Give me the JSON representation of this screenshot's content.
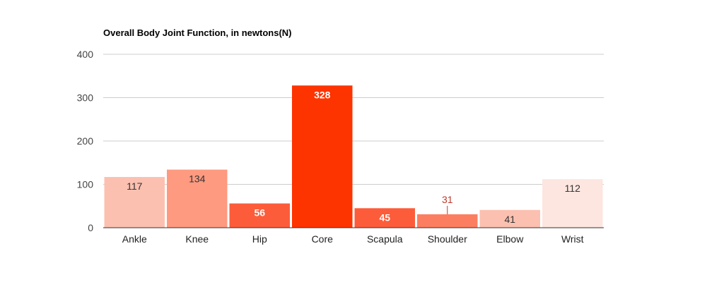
{
  "chart_data": {
    "type": "bar",
    "title": "Overall Body Joint Function, in newtons(N)",
    "xlabel": "",
    "ylabel": "",
    "ylim": [
      0,
      400
    ],
    "yticks": [
      "0",
      "100",
      "200",
      "300",
      "400"
    ],
    "grid": true,
    "legend": "none",
    "categories": [
      "Ankle",
      "Knee",
      "Hip",
      "Core",
      "Scapula",
      "Shoulder",
      "Elbow",
      "Wrist"
    ],
    "values": [
      117,
      134,
      56,
      328,
      45,
      31,
      41,
      112
    ],
    "data_labels": [
      "117",
      "134",
      "56",
      "328",
      "45",
      "31",
      "41",
      "112"
    ],
    "bar_colors": [
      "#fcc0b0",
      "#fd9a80",
      "#fd5c3a",
      "#fd3300",
      "#fd5c3a",
      "#fc7e60",
      "#fcc0b0",
      "#fde6e0"
    ],
    "label_colors": [
      "#333333",
      "#333333",
      "#ffffff",
      "#ffffff",
      "#ffffff",
      "#c0392b",
      "#333333",
      "#333333"
    ]
  }
}
